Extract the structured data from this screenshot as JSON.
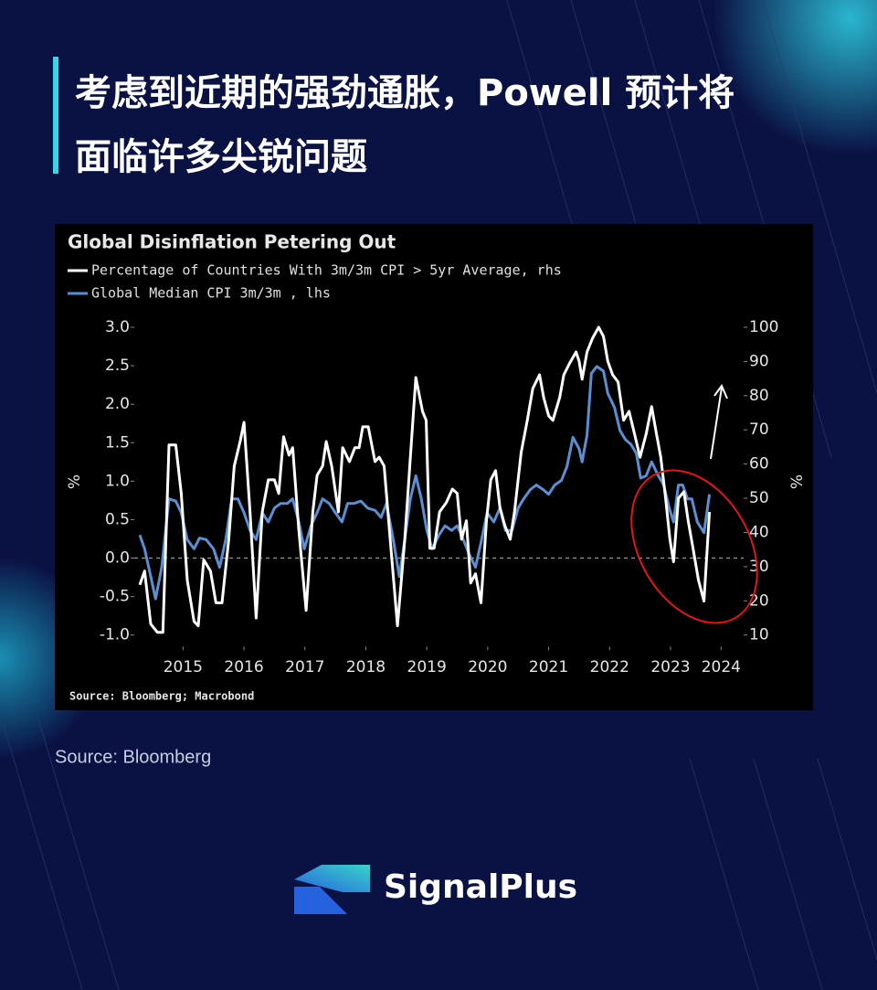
{
  "header": {
    "title_lines": [
      "考虑到近期的强劲通胀，Powell 预计将",
      "面临许多尖锐问题"
    ]
  },
  "chart_data": {
    "type": "line",
    "title": "Global Disinflation Petering Out",
    "source": "Source: Bloomberg; Macrobond",
    "ylabel": "%",
    "y2label": "%",
    "xlim": [
      2014.7,
      2024.7
    ],
    "xticks": [
      {
        "value": 2015.5,
        "label": "2015"
      },
      {
        "value": 2016.5,
        "label": "2016"
      },
      {
        "value": 2017.5,
        "label": "2017"
      },
      {
        "value": 2018.5,
        "label": "2018"
      },
      {
        "value": 2019.5,
        "label": "2019"
      },
      {
        "value": 2020.5,
        "label": "2020"
      },
      {
        "value": 2021.5,
        "label": "2021"
      },
      {
        "value": 2022.5,
        "label": "2022"
      },
      {
        "value": 2023.5,
        "label": "2023"
      },
      {
        "value": 2024.33,
        "label": "2024"
      }
    ],
    "ylim": [
      -1.15,
      3.15
    ],
    "yticks": [
      {
        "value": 3,
        "label": "3.0"
      },
      {
        "value": 2.5,
        "label": "2.5"
      },
      {
        "value": 2,
        "label": "2.0"
      },
      {
        "value": 1.5,
        "label": "1.5"
      },
      {
        "value": 1,
        "label": "1.0"
      },
      {
        "value": 0.5,
        "label": "0.5"
      },
      {
        "value": 0,
        "label": "0.0"
      },
      {
        "value": -0.5,
        "label": "-0.5"
      },
      {
        "value": -1,
        "label": "-1.0"
      }
    ],
    "y2lim": [
      6.625,
      103.375
    ],
    "y2ticks": [
      100,
      90,
      80,
      70,
      60,
      50,
      40,
      30,
      20,
      10
    ],
    "reference_line": {
      "value": 0,
      "style": "dashed",
      "color": "#9a9a9a"
    },
    "series": [
      {
        "name": "Percentage of Countries With 3m/3m CPI > 5yr Average, rhs",
        "color": "#ffffff",
        "axis": "y2",
        "x": [
          2014.79,
          2014.87,
          2014.97,
          2015.08,
          2015.17,
          2015.27,
          2015.38,
          2015.47,
          2015.57,
          2015.68,
          2015.75,
          2015.84,
          2015.95,
          2016.04,
          2016.14,
          2016.25,
          2016.34,
          2016.44,
          2016.5,
          2016.6,
          2016.7,
          2016.8,
          2016.9,
          2017.0,
          2017.07,
          2017.15,
          2017.24,
          2017.3,
          2017.4,
          2017.52,
          2017.63,
          2017.7,
          2017.79,
          2017.85,
          2017.94,
          2018.05,
          2018.12,
          2018.23,
          2018.32,
          2018.39,
          2018.45,
          2018.54,
          2018.65,
          2018.72,
          2018.8,
          2018.9,
          2019.02,
          2019.14,
          2019.23,
          2019.32,
          2019.43,
          2019.49,
          2019.55,
          2019.62,
          2019.71,
          2019.82,
          2019.92,
          2020.0,
          2020.07,
          2020.15,
          2020.22,
          2020.3,
          2020.39,
          2020.48,
          2020.55,
          2020.63,
          2020.7,
          2020.78,
          2020.87,
          2020.94,
          2021.05,
          2021.15,
          2021.24,
          2021.35,
          2021.42,
          2021.5,
          2021.57,
          2021.68,
          2021.75,
          2021.84,
          2021.95,
          2022.0,
          2022.05,
          2022.13,
          2022.22,
          2022.32,
          2022.4,
          2022.47,
          2022.55,
          2022.64,
          2022.73,
          2022.82,
          2022.92,
          2023.0,
          2023.1,
          2023.19,
          2023.27,
          2023.34,
          2023.42,
          2023.49,
          2023.55,
          2023.63,
          2023.72,
          2023.79,
          2023.87,
          2023.96,
          2024.05,
          2024.14
        ],
        "values": [
          24.7,
          28.7,
          13.2,
          10.8,
          10.8,
          65.6,
          65.6,
          51.4,
          26,
          14,
          12.7,
          32,
          28.7,
          19.4,
          19.4,
          38,
          59.4,
          66.9,
          72.2,
          46,
          15,
          46,
          55.4,
          55.4,
          51.4,
          68,
          62.6,
          64.8,
          40.7,
          17.2,
          46,
          56.7,
          59.4,
          66.6,
          59.4,
          46,
          64.8,
          60.7,
          64.8,
          64.8,
          70.9,
          70.9,
          60.7,
          62,
          59.4,
          38,
          12.7,
          38,
          62,
          85.3,
          75.4,
          72.8,
          35.4,
          35.4,
          46,
          48.7,
          52.7,
          51.4,
          38,
          43.4,
          25.2,
          27.9,
          19.4,
          43.4,
          55.4,
          58.1,
          47.4,
          42.1,
          38,
          46,
          63.4,
          72.8,
          82.1,
          86.1,
          79.4,
          74.1,
          72.8,
          79.4,
          86.1,
          89.3,
          92.8,
          90.1,
          84.8,
          92.8,
          96.8,
          100,
          97.3,
          90.1,
          86.1,
          84,
          72.8,
          75.4,
          68,
          62,
          68.8,
          76.8,
          68.8,
          62,
          50,
          38,
          31.4,
          50,
          51.9,
          43.4,
          35.4,
          26,
          19.9,
          46
        ]
      },
      {
        "name": "Global Median CPI 3m/3m , lhs",
        "color": "#5b8fd1",
        "axis": "y",
        "x": [
          2014.79,
          2014.87,
          2014.97,
          2015.05,
          2015.15,
          2015.27,
          2015.38,
          2015.47,
          2015.57,
          2015.68,
          2015.77,
          2015.88,
          2016.0,
          2016.1,
          2016.2,
          2016.3,
          2016.4,
          2016.5,
          2016.6,
          2016.7,
          2016.8,
          2016.9,
          2017.0,
          2017.1,
          2017.21,
          2017.3,
          2017.4,
          2017.49,
          2017.6,
          2017.7,
          2017.79,
          2017.9,
          2018.0,
          2018.11,
          2018.2,
          2018.3,
          2018.42,
          2018.53,
          2018.65,
          2018.75,
          2018.84,
          2018.95,
          2019.05,
          2019.14,
          2019.23,
          2019.32,
          2019.41,
          2019.5,
          2019.59,
          2019.7,
          2019.8,
          2019.91,
          2020.0,
          2020.1,
          2020.19,
          2020.3,
          2020.4,
          2020.49,
          2020.6,
          2020.7,
          2020.79,
          2020.9,
          2021.0,
          2021.09,
          2021.2,
          2021.3,
          2021.41,
          2021.5,
          2021.6,
          2021.71,
          2021.8,
          2021.9,
          2022.0,
          2022.05,
          2022.13,
          2022.2,
          2022.29,
          2022.4,
          2022.47,
          2022.58,
          2022.67,
          2022.76,
          2022.85,
          2022.94,
          2023.01,
          2023.1,
          2023.19,
          2023.3,
          2023.39,
          2023.48,
          2023.55,
          2023.63,
          2023.7,
          2023.78,
          2023.85,
          2023.94,
          2024.05,
          2024.14
        ],
        "values": [
          0.3,
          0.12,
          -0.24,
          -0.53,
          -0.12,
          0.77,
          0.74,
          0.59,
          0.24,
          0.12,
          0.26,
          0.24,
          0.12,
          -0.12,
          0.24,
          0.77,
          0.77,
          0.59,
          0.36,
          0.24,
          0.59,
          0.47,
          0.65,
          0.71,
          0.71,
          0.77,
          0.47,
          0.12,
          0.42,
          0.59,
          0.77,
          0.71,
          0.59,
          0.47,
          0.71,
          0.71,
          0.74,
          0.65,
          0.62,
          0.53,
          0.71,
          0.24,
          -0.24,
          0.24,
          0.77,
          1.07,
          0.77,
          0.36,
          0.12,
          0.3,
          0.42,
          0.36,
          0.42,
          0.24,
          0.06,
          -0.12,
          0.24,
          0.59,
          0.47,
          0.65,
          0.36,
          0.36,
          0.65,
          0.77,
          0.89,
          0.95,
          0.89,
          0.83,
          0.95,
          1.01,
          1.19,
          1.57,
          1.42,
          1.25,
          1.6,
          2.4,
          2.49,
          2.43,
          2.14,
          1.96,
          1.66,
          1.54,
          1.48,
          1.36,
          1.04,
          1.07,
          1.25,
          1.07,
          0.95,
          0.65,
          0.47,
          0.95,
          0.95,
          0.77,
          0.77,
          0.47,
          0.33,
          0.83
        ]
      }
    ]
  },
  "caption": "Source: Bloomberg",
  "brand": "SignalPlus"
}
